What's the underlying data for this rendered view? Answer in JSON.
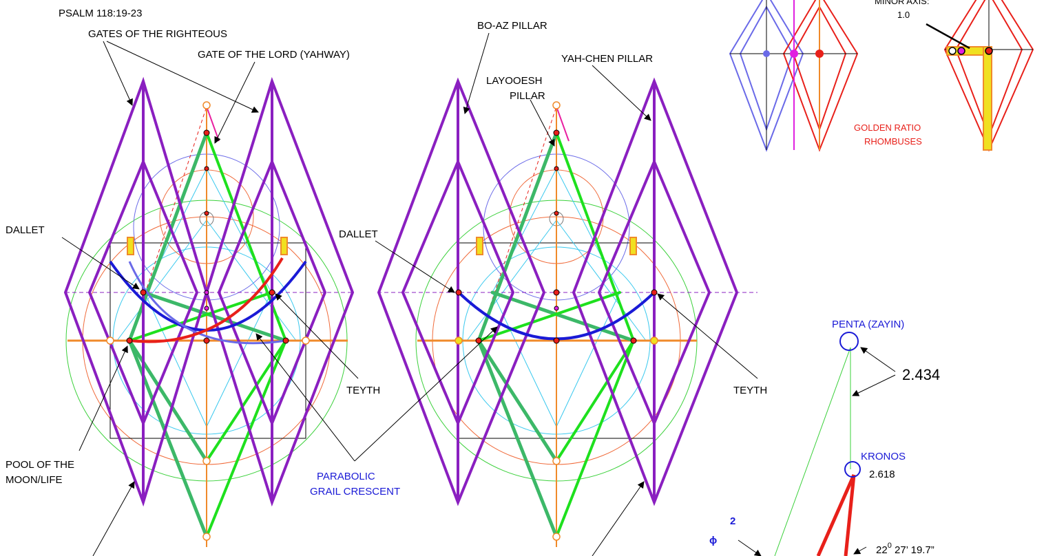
{
  "labels": {
    "psalm": "PSALM 118:19-23",
    "gates_righteous": "GATES OF THE RIGHTEOUS",
    "gate_lord": "GATE OF THE LORD (YAHWAY)",
    "bo_az": "BO-AZ PILLAR",
    "yah_chen": "YAH-CHEN PILLAR",
    "layooesh_1": "LAYOOESH",
    "layooesh_2": "PILLAR",
    "dallet_left": "DALLET",
    "dallet_right": "DALLET",
    "teyth_left": "TEYTH",
    "teyth_right": "TEYTH",
    "pool_1": "POOL OF THE",
    "pool_2": "MOON/LIFE",
    "parabolic_1": "PARABOLIC",
    "parabolic_2": "GRAIL CRESCENT",
    "minor_axis_1": "MINOR AXIS:",
    "minor_axis_2": "1.0",
    "golden_1": "GOLDEN RATIO",
    "golden_2": "RHOMBUSES",
    "penta": "PENTA  (ZAYIN)",
    "kronos": "KRONOS",
    "val_2434": "2.434",
    "val_2618": "2.618",
    "phi": "ϕ",
    "phi_exp": "2",
    "angle": "22",
    "angle_deg": "0",
    "angle_rest": " 27’ 19.7”"
  },
  "colors": {
    "purple": "#8a1fc0",
    "green_dark": "#3cb868",
    "green_bright": "#1ee01e",
    "orange": "#f08a2a",
    "red": "#e8201a",
    "blue": "#1a1ad6",
    "cyan": "#38c8ee",
    "magenta": "#e020e0",
    "slate": "#6a6ae8",
    "yellow": "#f0e020",
    "circle_green": "#3ad03a",
    "circle_red": "#f06a3a"
  }
}
